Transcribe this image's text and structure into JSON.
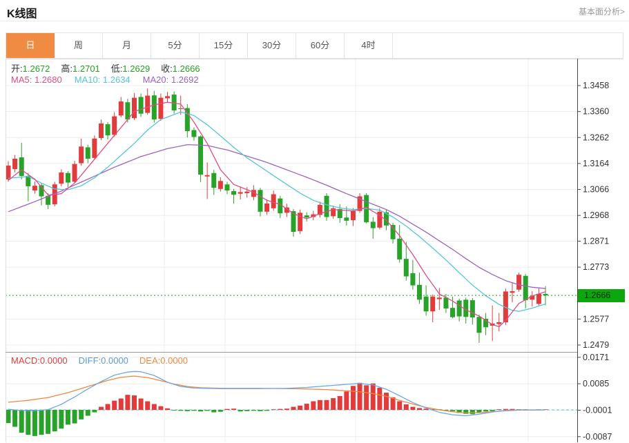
{
  "header": {
    "title": "K线图",
    "analysis_link": "基本面分析>"
  },
  "tabs": {
    "items": [
      "日",
      "周",
      "月",
      "5分",
      "15分",
      "30分",
      "60分",
      "4时"
    ],
    "active_index": 0
  },
  "legend": {
    "open_label": "开:",
    "open": "1.2672",
    "high_label": "高:",
    "high": "1.2701",
    "low_label": "低:",
    "low": "1.2629",
    "close_label": "收:",
    "close": "1.2666",
    "ma5": "MA5: 1.2680",
    "ma10": "MA10: 1.2634",
    "ma20": "MA20: 1.2692"
  },
  "macd_legend": {
    "macd": "MACD:0.0000",
    "diff": "DIFF:0.0000",
    "dea": "DEA:0.0000"
  },
  "colors": {
    "tab_active": "#ef8b43",
    "up": "#e23b3b",
    "down": "#28a228",
    "badge_green": "#0da60d",
    "price_line_green": "#0da60d",
    "ma5": "#e24c87",
    "ma10": "#53c6db",
    "ma20": "#9d62c4",
    "diff": "#6aa8e8",
    "dea": "#f0883c",
    "grid": "#ececec",
    "axis_line": "#444444",
    "axis_text": "#333333",
    "panel_border": "#dddddd",
    "separator": "#999999"
  },
  "chart_data": {
    "type": "candlestick",
    "period": "日",
    "panels": [
      "price",
      "macd"
    ],
    "price_axis": {
      "labels": [
        {
          "text": "1.3458",
          "price": 1.3458
        },
        {
          "text": "1.3360",
          "price": 1.336
        },
        {
          "text": "1.3262",
          "price": 1.3262
        },
        {
          "text": "1.3164",
          "price": 1.3164
        },
        {
          "text": "1.3066",
          "price": 1.3066
        },
        {
          "text": "1.2968",
          "price": 1.2968
        },
        {
          "text": "1.2871",
          "price": 1.2871
        },
        {
          "text": "1.2773",
          "price": 1.2773
        },
        {
          "text": "1.2577",
          "price": 1.2577
        },
        {
          "text": "1.2479",
          "price": 1.2479
        }
      ],
      "current": {
        "text": "1.2666",
        "price": 1.2666
      }
    },
    "macd_axis": {
      "labels": [
        {
          "text": "0.0171",
          "value": 0.0171
        },
        {
          "text": "0.0085",
          "value": 0.0085
        },
        {
          "text": "-0.0001",
          "value": -0.0001
        },
        {
          "text": "-0.0087",
          "value": -0.0087
        }
      ]
    },
    "last_values": {
      "open": 1.2672,
      "high": 1.2701,
      "low": 1.2629,
      "close": 1.2666,
      "ma5": 1.268,
      "ma10": 1.2634,
      "ma20": 1.2692,
      "macd": 0.0,
      "diff": 0.0,
      "dea": 0.0
    },
    "candles": [
      [
        1.3104,
        1.3173,
        1.3095,
        1.3156
      ],
      [
        1.3143,
        1.3196,
        1.313,
        1.3182
      ],
      [
        1.3187,
        1.3242,
        1.3104,
        1.3117
      ],
      [
        1.3117,
        1.3128,
        1.3021,
        1.3078
      ],
      [
        1.3062,
        1.3096,
        1.305,
        1.308
      ],
      [
        1.3082,
        1.309,
        1.3006,
        1.304
      ],
      [
        1.3042,
        1.3052,
        1.2992,
        1.3008
      ],
      [
        1.301,
        1.3095,
        1.3002,
        1.3085
      ],
      [
        1.3088,
        1.3142,
        1.3078,
        1.313
      ],
      [
        1.3128,
        1.3135,
        1.3075,
        1.3092
      ],
      [
        1.3095,
        1.3174,
        1.3088,
        1.3162
      ],
      [
        1.3165,
        1.3258,
        1.3155,
        1.3228
      ],
      [
        1.3225,
        1.3235,
        1.3165,
        1.3182
      ],
      [
        1.3185,
        1.327,
        1.3178,
        1.3258
      ],
      [
        1.326,
        1.333,
        1.3252,
        1.3315
      ],
      [
        1.3312,
        1.332,
        1.3255,
        1.327
      ],
      [
        1.3272,
        1.3358,
        1.3265,
        1.3342
      ],
      [
        1.3345,
        1.3415,
        1.3338,
        1.3398
      ],
      [
        1.3395,
        1.3408,
        1.3318,
        1.333
      ],
      [
        1.3335,
        1.343,
        1.3328,
        1.3412
      ],
      [
        1.3415,
        1.3428,
        1.334,
        1.3352
      ],
      [
        1.3355,
        1.3447,
        1.3348,
        1.342
      ],
      [
        1.3421,
        1.3438,
        1.3318,
        1.333
      ],
      [
        1.3332,
        1.3428,
        1.3325,
        1.3412
      ],
      [
        1.341,
        1.3434,
        1.3395,
        1.3418
      ],
      [
        1.3424,
        1.3436,
        1.3352,
        1.3364
      ],
      [
        1.337,
        1.342,
        1.3348,
        1.3372
      ],
      [
        1.3373,
        1.3388,
        1.3262,
        1.3286
      ],
      [
        1.329,
        1.33,
        1.325,
        1.3264
      ],
      [
        1.3266,
        1.327,
        1.3094,
        1.3122
      ],
      [
        1.3115,
        1.3168,
        1.303,
        1.312
      ],
      [
        1.3128,
        1.314,
        1.3045,
        1.3072
      ],
      [
        1.3068,
        1.3112,
        1.3058,
        1.3098
      ],
      [
        1.3085,
        1.3095,
        1.3048,
        1.3062
      ],
      [
        1.306,
        1.3068,
        1.3012,
        1.3046
      ],
      [
        1.305,
        1.3078,
        1.3028,
        1.3056
      ],
      [
        1.3052,
        1.3075,
        1.3035,
        1.3058
      ],
      [
        1.3038,
        1.3082,
        1.3025,
        1.3064
      ],
      [
        1.3064,
        1.3072,
        1.2964,
        1.2982
      ],
      [
        1.2982,
        1.3028,
        1.297,
        1.3013
      ],
      [
        1.2995,
        1.3062,
        1.2986,
        1.3048
      ],
      [
        1.3032,
        1.3042,
        1.2958,
        1.2976
      ],
      [
        1.2978,
        1.3012,
        1.2962,
        1.2998
      ],
      [
        1.2984,
        1.2992,
        1.2888,
        1.2906
      ],
      [
        1.2909,
        1.299,
        1.2898,
        1.2978
      ],
      [
        1.2968,
        1.298,
        1.2945,
        1.296
      ],
      [
        1.2962,
        1.2985,
        1.295,
        1.2972
      ],
      [
        1.297,
        1.302,
        1.296,
        1.3008
      ],
      [
        1.3042,
        1.3052,
        1.2948,
        1.2962
      ],
      [
        1.2965,
        1.3005,
        1.2955,
        1.2995
      ],
      [
        1.2992,
        1.301,
        1.294,
        1.2958
      ],
      [
        1.296,
        1.3002,
        1.293,
        1.2948
      ],
      [
        1.295,
        1.2996,
        1.2928,
        1.2985
      ],
      [
        1.2985,
        1.3052,
        1.2978,
        1.304
      ],
      [
        1.3045,
        1.3052,
        1.2938,
        1.2942
      ],
      [
        1.2944,
        1.2962,
        1.288,
        1.292
      ],
      [
        1.2922,
        1.2995,
        1.2915,
        1.2982
      ],
      [
        1.298,
        1.299,
        1.2912,
        1.293
      ],
      [
        1.2932,
        1.294,
        1.2862,
        1.2878
      ],
      [
        1.288,
        1.2932,
        1.279,
        1.2802
      ],
      [
        1.2804,
        1.2868,
        1.2722,
        1.2738
      ],
      [
        1.275,
        1.28,
        1.2688,
        1.2704
      ],
      [
        1.2706,
        1.2752,
        1.2634,
        1.265
      ],
      [
        1.2662,
        1.2704,
        1.259,
        1.2606
      ],
      [
        1.2606,
        1.267,
        1.2565,
        1.2662
      ],
      [
        1.2652,
        1.2694,
        1.2612,
        1.2658
      ],
      [
        1.2658,
        1.2672,
        1.26,
        1.2617
      ],
      [
        1.2619,
        1.2662,
        1.258,
        1.2584
      ],
      [
        1.2647,
        1.2654,
        1.2568,
        1.2587
      ],
      [
        1.265,
        1.2658,
        1.256,
        1.2585
      ],
      [
        1.2648,
        1.2656,
        1.2556,
        1.2583
      ],
      [
        1.2585,
        1.2594,
        1.2487,
        1.2525
      ],
      [
        1.2578,
        1.26,
        1.2516,
        1.2546
      ],
      [
        1.2552,
        1.2628,
        1.2494,
        1.256
      ],
      [
        1.2558,
        1.26,
        1.253,
        1.2565
      ],
      [
        1.2565,
        1.2692,
        1.2554,
        1.2681
      ],
      [
        1.2676,
        1.2715,
        1.264,
        1.2682
      ],
      [
        1.2688,
        1.2752,
        1.268,
        1.2744
      ],
      [
        1.274,
        1.2747,
        1.2617,
        1.2648
      ],
      [
        1.265,
        1.2682,
        1.2624,
        1.2664
      ],
      [
        1.2634,
        1.2692,
        1.2628,
        1.2672
      ],
      [
        1.2672,
        1.2701,
        1.2629,
        1.2666
      ]
    ],
    "ma5_keypoints": [
      [
        1,
        1.31
      ],
      [
        3,
        1.314
      ],
      [
        5,
        1.3105
      ],
      [
        7,
        1.3045
      ],
      [
        9,
        1.305
      ],
      [
        11,
        1.309
      ],
      [
        14,
        1.318
      ],
      [
        17,
        1.327
      ],
      [
        20,
        1.336
      ],
      [
        23,
        1.3385
      ],
      [
        25,
        1.3395
      ],
      [
        27,
        1.3388
      ],
      [
        29,
        1.332
      ],
      [
        31,
        1.324
      ],
      [
        33,
        1.314
      ],
      [
        35,
        1.3085
      ],
      [
        38,
        1.3055
      ],
      [
        40,
        1.3025
      ],
      [
        42,
        1.301
      ],
      [
        44,
        1.2975
      ],
      [
        46,
        1.2955
      ],
      [
        48,
        1.2975
      ],
      [
        50,
        1.299
      ],
      [
        53,
        1.2985
      ],
      [
        55,
        1.2998
      ],
      [
        57,
        1.2968
      ],
      [
        58,
        1.295
      ],
      [
        60,
        1.2892
      ],
      [
        62,
        1.282
      ],
      [
        64,
        1.2742
      ],
      [
        66,
        1.2672
      ],
      [
        68,
        1.2645
      ],
      [
        70,
        1.2612
      ],
      [
        72,
        1.2588
      ],
      [
        74,
        1.2556
      ],
      [
        75,
        1.2548
      ],
      [
        76,
        1.2572
      ],
      [
        78,
        1.2636
      ],
      [
        80,
        1.2664
      ],
      [
        82,
        1.268
      ]
    ],
    "ma10_keypoints": [
      [
        1,
        1.3108
      ],
      [
        4,
        1.3115
      ],
      [
        6,
        1.309
      ],
      [
        8,
        1.3068
      ],
      [
        10,
        1.3065
      ],
      [
        12,
        1.308
      ],
      [
        14,
        1.311
      ],
      [
        16,
        1.315
      ],
      [
        18,
        1.3195
      ],
      [
        20,
        1.324
      ],
      [
        22,
        1.329
      ],
      [
        24,
        1.333
      ],
      [
        27,
        1.3358
      ],
      [
        29,
        1.3345
      ],
      [
        31,
        1.331
      ],
      [
        33,
        1.3268
      ],
      [
        35,
        1.3225
      ],
      [
        37,
        1.3185
      ],
      [
        39,
        1.3152
      ],
      [
        41,
        1.3118
      ],
      [
        43,
        1.3085
      ],
      [
        45,
        1.3052
      ],
      [
        47,
        1.3025
      ],
      [
        49,
        1.3008
      ],
      [
        51,
        1.2996
      ],
      [
        53,
        1.299
      ],
      [
        55,
        1.2994
      ],
      [
        57,
        1.2988
      ],
      [
        59,
        1.2962
      ],
      [
        61,
        1.2928
      ],
      [
        63,
        1.2888
      ],
      [
        65,
        1.2845
      ],
      [
        67,
        1.28
      ],
      [
        69,
        1.2752
      ],
      [
        71,
        1.2705
      ],
      [
        73,
        1.2665
      ],
      [
        75,
        1.2632
      ],
      [
        77,
        1.261
      ],
      [
        78,
        1.2606
      ],
      [
        80,
        1.2618
      ],
      [
        82,
        1.2634
      ]
    ],
    "ma20_keypoints": [
      [
        1,
        1.2982
      ],
      [
        5,
        1.302
      ],
      [
        9,
        1.306
      ],
      [
        13,
        1.3105
      ],
      [
        17,
        1.315
      ],
      [
        21,
        1.319
      ],
      [
        25,
        1.322
      ],
      [
        28,
        1.3235
      ],
      [
        31,
        1.3232
      ],
      [
        34,
        1.3215
      ],
      [
        37,
        1.3192
      ],
      [
        40,
        1.3168
      ],
      [
        43,
        1.314
      ],
      [
        46,
        1.3112
      ],
      [
        49,
        1.3082
      ],
      [
        52,
        1.305
      ],
      [
        55,
        1.302
      ],
      [
        58,
        1.299
      ],
      [
        60,
        1.2965
      ],
      [
        62,
        1.2935
      ],
      [
        64,
        1.2905
      ],
      [
        66,
        1.2872
      ],
      [
        68,
        1.284
      ],
      [
        70,
        1.2805
      ],
      [
        72,
        1.2772
      ],
      [
        74,
        1.2745
      ],
      [
        76,
        1.2722
      ],
      [
        78,
        1.2706
      ],
      [
        80,
        1.2697
      ],
      [
        82,
        1.2692
      ]
    ],
    "macd_histogram": [
      -0.0043,
      -0.0055,
      -0.0074,
      -0.0081,
      -0.0085,
      -0.0081,
      -0.0078,
      -0.007,
      -0.0061,
      -0.0048,
      -0.0044,
      -0.0031,
      -0.0019,
      -0.0008,
      0.001,
      0.0019,
      0.003,
      0.0037,
      0.0049,
      0.0047,
      0.0037,
      0.0028,
      0.0019,
      0.0012,
      0.0005,
      -0.0002,
      -0.0003,
      -0.0004,
      -0.0003,
      -0.0005,
      -0.0003,
      -0.0008,
      -0.0006,
      0.0003,
      0.0004,
      -0.0005,
      -0.0004,
      -0.0003,
      -0.0004,
      -0.0003,
      0.0002,
      0.0003,
      0.0004,
      0.001,
      0.0014,
      0.002,
      0.0028,
      0.0032,
      0.0032,
      0.0038,
      0.0045,
      0.006,
      0.0078,
      0.0088,
      0.008,
      0.0086,
      0.0072,
      0.0056,
      0.0041,
      0.0028,
      0.0018,
      0.001,
      0.0006,
      0.0004,
      0.0002,
      0.0001,
      -0.0002,
      -0.0004,
      -0.001,
      -0.0013,
      -0.0014,
      -0.0008,
      -0.0005,
      -0.0004,
      0.0002,
      0.0003,
      0.0003,
      0.0002,
      0.0001,
      -0.0001,
      0.0,
      0.0
    ],
    "diff_keypoints": [
      [
        1,
        0.0002
      ],
      [
        3,
        -0.0002
      ],
      [
        5,
        -0.0003
      ],
      [
        7,
        0.0001
      ],
      [
        9,
        0.0018
      ],
      [
        11,
        0.0042
      ],
      [
        13,
        0.0068
      ],
      [
        15,
        0.0092
      ],
      [
        17,
        0.0113
      ],
      [
        19,
        0.0123
      ],
      [
        20,
        0.0125
      ],
      [
        21,
        0.0124
      ],
      [
        23,
        0.0112
      ],
      [
        25,
        0.009
      ],
      [
        27,
        0.0076
      ],
      [
        29,
        0.0071
      ],
      [
        33,
        0.0069
      ],
      [
        38,
        0.0069
      ],
      [
        43,
        0.007
      ],
      [
        46,
        0.0073
      ],
      [
        49,
        0.0078
      ],
      [
        52,
        0.0083
      ],
      [
        54,
        0.0086
      ],
      [
        56,
        0.0081
      ],
      [
        58,
        0.0067
      ],
      [
        60,
        0.0046
      ],
      [
        62,
        0.0024
      ],
      [
        64,
        0.0006
      ],
      [
        66,
        -0.0008
      ],
      [
        68,
        -0.0016
      ],
      [
        70,
        -0.0019
      ],
      [
        72,
        -0.0014
      ],
      [
        74,
        -0.0007
      ],
      [
        76,
        -0.0002
      ],
      [
        78,
        0.0
      ],
      [
        82,
        0.0
      ]
    ],
    "dea_keypoints": [
      [
        1,
        0.0025
      ],
      [
        4,
        0.0031
      ],
      [
        7,
        0.004
      ],
      [
        10,
        0.0056
      ],
      [
        13,
        0.0076
      ],
      [
        16,
        0.0096
      ],
      [
        18,
        0.0106
      ],
      [
        20,
        0.011
      ],
      [
        22,
        0.0105
      ],
      [
        24,
        0.0095
      ],
      [
        26,
        0.0084
      ],
      [
        28,
        0.0076
      ],
      [
        30,
        0.0072
      ],
      [
        34,
        0.007
      ],
      [
        39,
        0.007
      ],
      [
        43,
        0.0069
      ],
      [
        46,
        0.0068
      ],
      [
        49,
        0.0066
      ],
      [
        52,
        0.0062
      ],
      [
        54,
        0.0059
      ],
      [
        56,
        0.0053
      ],
      [
        58,
        0.0044
      ],
      [
        60,
        0.0031
      ],
      [
        62,
        0.0019
      ],
      [
        64,
        0.0008
      ],
      [
        66,
        0.0
      ],
      [
        68,
        -0.0006
      ],
      [
        70,
        -0.001
      ],
      [
        72,
        -0.0009
      ],
      [
        74,
        -0.0006
      ],
      [
        76,
        -0.0003
      ],
      [
        78,
        -0.0001
      ],
      [
        82,
        0.0
      ]
    ]
  }
}
